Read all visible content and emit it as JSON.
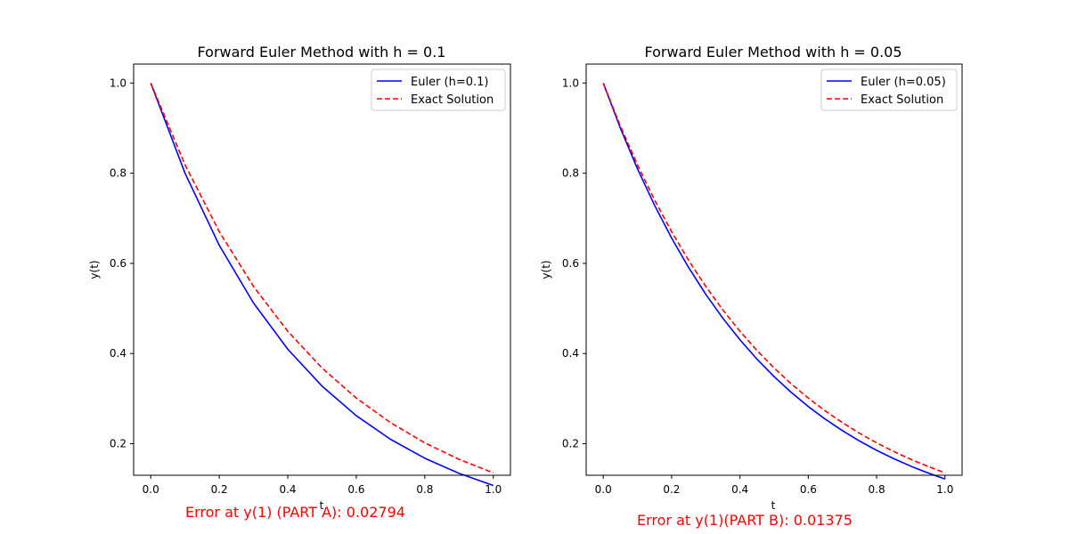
{
  "chart_data": [
    {
      "type": "line",
      "title": "Forward Euler Method with h = 0.1",
      "xlabel": "t",
      "ylabel": "y(t)",
      "xlim": [
        -0.05,
        1.05
      ],
      "ylim": [
        0.13,
        1.042
      ],
      "xticks": [
        "0.0",
        "0.2",
        "0.4",
        "0.6",
        "0.8",
        "1.0"
      ],
      "yticks": [
        "0.2",
        "0.4",
        "0.6",
        "0.8",
        "1.0"
      ],
      "legend": "top-right",
      "grid": false,
      "series": [
        {
          "name": "Euler (h=0.1)",
          "color": "#0000ff",
          "style": "solid",
          "x": [
            0.0,
            0.1,
            0.2,
            0.3,
            0.4,
            0.5,
            0.6,
            0.7,
            0.8,
            0.9,
            1.0
          ],
          "y": [
            1.0,
            0.8,
            0.64,
            0.512,
            0.4096,
            0.3277,
            0.2621,
            0.2097,
            0.1678,
            0.1342,
            0.1074
          ]
        },
        {
          "name": "Exact Solution",
          "color": "#ff0000",
          "style": "dashed",
          "x": [
            0.0,
            0.1,
            0.2,
            0.3,
            0.4,
            0.5,
            0.6,
            0.7,
            0.8,
            0.9,
            1.0
          ],
          "y": [
            1.0,
            0.8187,
            0.6703,
            0.5488,
            0.4493,
            0.3679,
            0.3012,
            0.2466,
            0.2019,
            0.1653,
            0.1353
          ]
        }
      ],
      "annotation": "Error at y(1) (PART A): 0.02794"
    },
    {
      "type": "line",
      "title": "Forward Euler Method with h = 0.05",
      "xlabel": "t",
      "ylabel": "y(t)",
      "xlim": [
        -0.05,
        1.05
      ],
      "ylim": [
        0.13,
        1.042
      ],
      "xticks": [
        "0.0",
        "0.2",
        "0.4",
        "0.6",
        "0.8",
        "1.0"
      ],
      "yticks": [
        "0.2",
        "0.4",
        "0.6",
        "0.8",
        "1.0"
      ],
      "legend": "top-right",
      "grid": false,
      "series": [
        {
          "name": "Euler (h=0.05)",
          "color": "#0000ff",
          "style": "solid",
          "x": [
            0.0,
            0.05,
            0.1,
            0.15,
            0.2,
            0.25,
            0.3,
            0.35,
            0.4,
            0.45,
            0.5,
            0.55,
            0.6,
            0.65,
            0.7,
            0.75,
            0.8,
            0.85,
            0.9,
            0.95,
            1.0
          ],
          "y": [
            1.0,
            0.9,
            0.81,
            0.729,
            0.6561,
            0.5905,
            0.5314,
            0.4783,
            0.4305,
            0.3874,
            0.3487,
            0.3138,
            0.2824,
            0.2542,
            0.2288,
            0.2059,
            0.1853,
            0.1668,
            0.1501,
            0.1351,
            0.1216
          ]
        },
        {
          "name": "Exact Solution",
          "color": "#ff0000",
          "style": "dashed",
          "x": [
            0.0,
            0.05,
            0.1,
            0.15,
            0.2,
            0.25,
            0.3,
            0.35,
            0.4,
            0.45,
            0.5,
            0.55,
            0.6,
            0.65,
            0.7,
            0.75,
            0.8,
            0.85,
            0.9,
            0.95,
            1.0
          ],
          "y": [
            1.0,
            0.9048,
            0.8187,
            0.7408,
            0.6703,
            0.6065,
            0.5488,
            0.4966,
            0.4493,
            0.4066,
            0.3679,
            0.3329,
            0.3012,
            0.2725,
            0.2466,
            0.2231,
            0.2019,
            0.1827,
            0.1653,
            0.1496,
            0.1353
          ]
        }
      ],
      "annotation": "Error at y(1)(PART B): 0.01375"
    }
  ]
}
